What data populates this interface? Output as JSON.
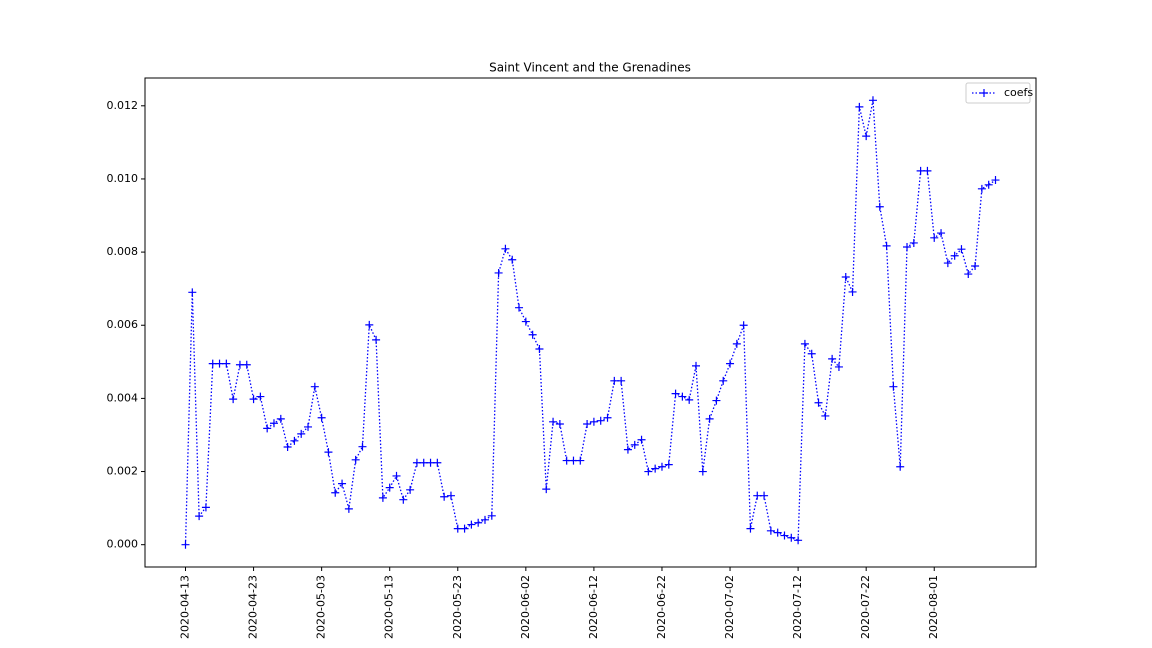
{
  "chart_data": {
    "type": "line",
    "title": "Saint Vincent and the Grenadines",
    "x": [
      "2020-04-13",
      "2020-04-14",
      "2020-04-15",
      "2020-04-16",
      "2020-04-17",
      "2020-04-18",
      "2020-04-19",
      "2020-04-20",
      "2020-04-21",
      "2020-04-22",
      "2020-04-23",
      "2020-04-24",
      "2020-04-25",
      "2020-04-26",
      "2020-04-27",
      "2020-04-28",
      "2020-04-29",
      "2020-04-30",
      "2020-05-01",
      "2020-05-02",
      "2020-05-03",
      "2020-05-04",
      "2020-05-05",
      "2020-05-06",
      "2020-05-07",
      "2020-05-08",
      "2020-05-09",
      "2020-05-10",
      "2020-05-11",
      "2020-05-12",
      "2020-05-13",
      "2020-05-14",
      "2020-05-15",
      "2020-05-16",
      "2020-05-17",
      "2020-05-18",
      "2020-05-19",
      "2020-05-20",
      "2020-05-21",
      "2020-05-22",
      "2020-05-23",
      "2020-05-24",
      "2020-05-25",
      "2020-05-26",
      "2020-05-27",
      "2020-05-28",
      "2020-05-29",
      "2020-05-30",
      "2020-05-31",
      "2020-06-01",
      "2020-06-02",
      "2020-06-03",
      "2020-06-04",
      "2020-06-05",
      "2020-06-06",
      "2020-06-07",
      "2020-06-08",
      "2020-06-09",
      "2020-06-10",
      "2020-06-11",
      "2020-06-12",
      "2020-06-13",
      "2020-06-14",
      "2020-06-15",
      "2020-06-16",
      "2020-06-17",
      "2020-06-18",
      "2020-06-19",
      "2020-06-20",
      "2020-06-21",
      "2020-06-22",
      "2020-06-23",
      "2020-06-24",
      "2020-06-25",
      "2020-06-26",
      "2020-06-27",
      "2020-06-28",
      "2020-06-29",
      "2020-06-30",
      "2020-07-01",
      "2020-07-02",
      "2020-07-03",
      "2020-07-04",
      "2020-07-05",
      "2020-07-06",
      "2020-07-07",
      "2020-07-08",
      "2020-07-09",
      "2020-07-10",
      "2020-07-11",
      "2020-07-12",
      "2020-07-13",
      "2020-07-14",
      "2020-07-15",
      "2020-07-16",
      "2020-07-17",
      "2020-07-18",
      "2020-07-19",
      "2020-07-20",
      "2020-07-21",
      "2020-07-22",
      "2020-07-23",
      "2020-07-24",
      "2020-07-25",
      "2020-07-26",
      "2020-07-27",
      "2020-07-28",
      "2020-07-29",
      "2020-07-30",
      "2020-07-31",
      "2020-08-01",
      "2020-08-02",
      "2020-08-03",
      "2020-08-04",
      "2020-08-05",
      "2020-08-06",
      "2020-08-07",
      "2020-08-08",
      "2020-08-09",
      "2020-08-10"
    ],
    "series": [
      {
        "name": "coefs",
        "color": "#0000ff",
        "linestyle": "dotted",
        "marker": "+",
        "values": [
          0.0,
          0.0069,
          0.00078,
          0.00102,
          0.00495,
          0.00495,
          0.00495,
          0.00398,
          0.00492,
          0.00492,
          0.00398,
          0.00405,
          0.00318,
          0.00332,
          0.00344,
          0.00267,
          0.00284,
          0.00303,
          0.00322,
          0.00432,
          0.00347,
          0.00253,
          0.00142,
          0.00167,
          0.00098,
          0.00232,
          0.00268,
          0.00601,
          0.0056,
          0.00128,
          0.00156,
          0.00188,
          0.00123,
          0.0015,
          0.00224,
          0.00224,
          0.00224,
          0.00224,
          0.00131,
          0.00134,
          0.00044,
          0.00044,
          0.00055,
          0.0006,
          0.00068,
          0.00079,
          0.00743,
          0.00809,
          0.00779,
          0.00648,
          0.0061,
          0.00574,
          0.00535,
          0.00152,
          0.00336,
          0.0033,
          0.0023,
          0.0023,
          0.0023,
          0.0033,
          0.00336,
          0.00339,
          0.00347,
          0.00448,
          0.00448,
          0.0026,
          0.00273,
          0.00287,
          0.002,
          0.00208,
          0.00213,
          0.00219,
          0.00413,
          0.00405,
          0.00396,
          0.00489,
          0.002,
          0.00344,
          0.00394,
          0.00448,
          0.00495,
          0.00549,
          0.006,
          0.00044,
          0.00134,
          0.00134,
          0.00038,
          0.00033,
          0.00025,
          0.00019,
          0.00012,
          0.00549,
          0.00522,
          0.00388,
          0.00352,
          0.00508,
          0.00486,
          0.00732,
          0.00691,
          0.01197,
          0.01117,
          0.01215,
          0.00924,
          0.00817,
          0.00432,
          0.00213,
          0.00814,
          0.00825,
          0.01022,
          0.01022,
          0.00839,
          0.00852,
          0.0077,
          0.0079,
          0.00808,
          0.0074,
          0.00762,
          0.00973,
          0.00984,
          0.00997
        ]
      }
    ],
    "xlim": [
      "2020-04-07T01:12:00Z",
      "2020-08-15T22:48:00Z"
    ],
    "xticks": [
      "2020-04-13",
      "2020-04-23",
      "2020-05-03",
      "2020-05-13",
      "2020-05-23",
      "2020-06-02",
      "2020-06-12",
      "2020-06-22",
      "2020-07-02",
      "2020-07-12",
      "2020-07-22",
      "2020-08-01"
    ],
    "ylim": [
      -0.00061,
      0.01276
    ],
    "yticks": [
      {
        "value": 0,
        "label": "0.000"
      },
      {
        "value": 0.002,
        "label": "0.002"
      },
      {
        "value": 0.004,
        "label": "0.004"
      },
      {
        "value": 0.006,
        "label": "0.006"
      },
      {
        "value": 0.008,
        "label": "0.008"
      },
      {
        "value": 0.01,
        "label": "0.010"
      },
      {
        "value": 0.012,
        "label": "0.012"
      }
    ],
    "grid": false,
    "legend": "upper right"
  }
}
